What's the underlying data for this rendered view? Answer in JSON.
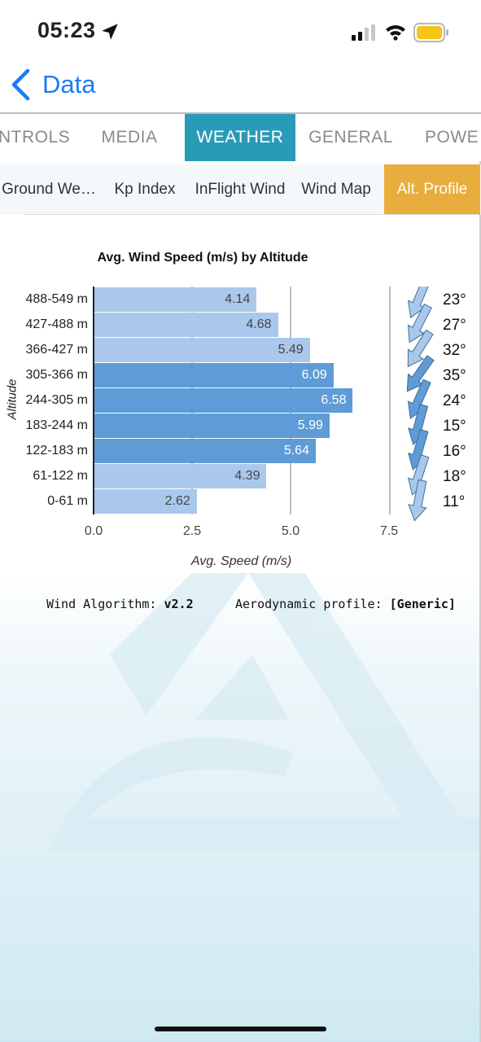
{
  "status": {
    "time": "05:23"
  },
  "nav": {
    "back_label": "Data"
  },
  "tabs": [
    "NTROLS",
    "MEDIA",
    "WEATHER",
    "GENERAL",
    "POWE"
  ],
  "active_tab": "WEATHER",
  "subtabs": [
    "Ground We…",
    "Kp Index",
    "InFlight Wind",
    "Wind Map",
    "Alt. Profile"
  ],
  "active_subtab": "Alt. Profile",
  "chart_data": {
    "type": "bar",
    "orientation": "horizontal",
    "title": "Avg. Wind Speed (m/s) by Altitude",
    "xlabel": "Avg. Speed (m/s)",
    "ylabel": "Altitude",
    "categories": [
      "488-549 m",
      "427-488 m",
      "366-427 m",
      "305-366 m",
      "244-305 m",
      "183-244 m",
      "122-183 m",
      "61-122 m",
      "0-61 m"
    ],
    "values": [
      4.14,
      4.68,
      5.49,
      6.09,
      6.58,
      5.99,
      5.64,
      4.39,
      2.62
    ],
    "value_labels": [
      "4.14",
      "4.68",
      "5.49",
      "6.09",
      "6.58",
      "5.99",
      "5.64",
      "4.39",
      "2.62"
    ],
    "xlim": [
      0,
      7.5
    ],
    "xticks": [
      "0.0",
      "2.5",
      "5.0",
      "7.5"
    ],
    "grid": "vertical",
    "highlight_threshold": 5.5,
    "colors": {
      "light": "#a9c8eb",
      "dark": "#5f9bd6"
    },
    "directions_deg": [
      23,
      27,
      32,
      35,
      24,
      15,
      16,
      18,
      11
    ],
    "direction_labels": [
      "23°",
      "27°",
      "32°",
      "35°",
      "24°",
      "15°",
      "16°",
      "18°",
      "11°"
    ]
  },
  "info": {
    "algorithm_label": "Wind Algorithm:",
    "algorithm_value": "v2.2",
    "profile_label": "Aerodynamic profile:",
    "profile_value": "[Generic]"
  },
  "colors": {
    "accent_tab": "#2a9bb7",
    "active_subtab": "#e9ad3d",
    "link_blue": "#1a7cf5"
  }
}
